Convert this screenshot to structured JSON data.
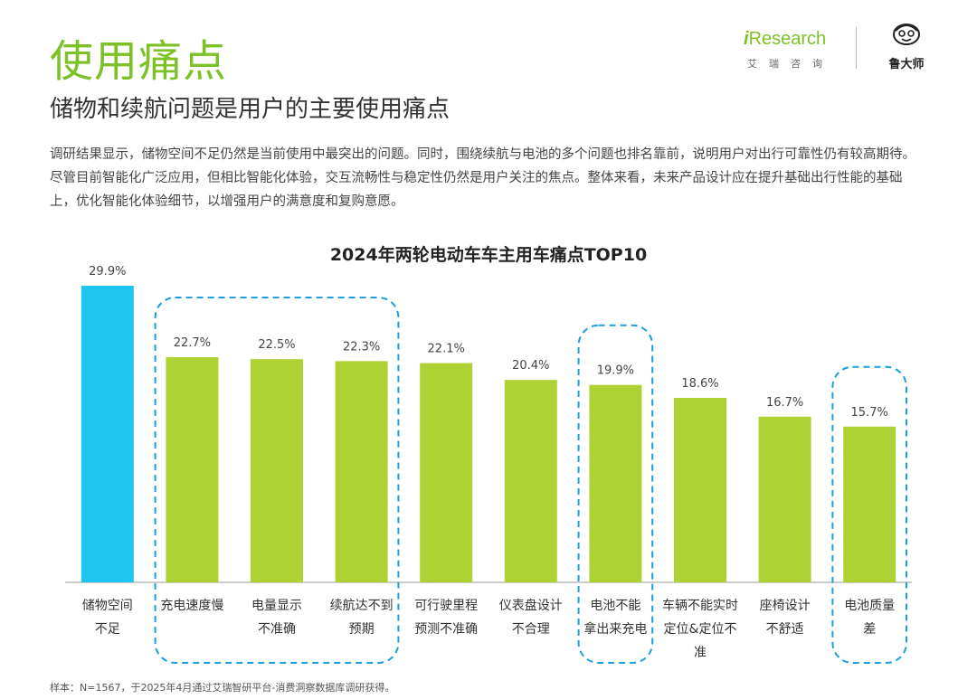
{
  "page": {
    "title": "使用痛点",
    "subtitle": "储物和续航问题是用户的主要使用痛点",
    "body": "调研结果显示，储物空间不足仍然是当前使用中最突出的问题。同时，围绕续航与电池的多个问题也排名靠前，说明用户对出行可靠性仍有较高期待。尽管目前智能化广泛应用，但相比智能化体验，交互流畅性与稳定性仍然是用户关注的焦点。整体来看，未来产品设计应在提升基础出行性能的基础上，优化智能化体验细节，以增强用户的满意度和复购意愿。",
    "source": "样本：N=1567，于2025年4月通过艾瑞智研平台-消费洞察数据库调研获得。"
  },
  "brand": {
    "iresearch_i": "i",
    "iresearch_word": "Research",
    "iresearch_cn": "艾瑞咨询",
    "ludashi": "鲁大师"
  },
  "chart_data": {
    "type": "bar",
    "title": "2024年两轮电动车车主用车痛点TOP10",
    "categories": [
      [
        "储物空间",
        "不足"
      ],
      [
        "充电速度慢"
      ],
      [
        "电量显示",
        "不准确"
      ],
      [
        "续航达不到",
        "预期"
      ],
      [
        "可行驶里程",
        "预测不准确"
      ],
      [
        "仪表盘设计",
        "不合理"
      ],
      [
        "电池不能",
        "拿出来充电"
      ],
      [
        "车辆不能实时",
        "定位&定位不",
        "准"
      ],
      [
        "座椅设计",
        "不舒适"
      ],
      [
        "电池质量",
        "差"
      ]
    ],
    "values": [
      29.9,
      22.7,
      22.5,
      22.3,
      22.1,
      20.4,
      19.9,
      18.6,
      16.7,
      15.7
    ],
    "value_labels": [
      "29.9%",
      "22.7%",
      "22.5%",
      "22.3%",
      "22.1%",
      "20.4%",
      "19.9%",
      "18.6%",
      "16.7%",
      "15.7%"
    ],
    "ylim": [
      0,
      29.9
    ],
    "highlight_color": "#1ec5ef",
    "bar_color": "#aed133",
    "highlight_index": 0,
    "highlight_groups": [
      [
        1,
        3
      ],
      [
        6,
        6
      ],
      [
        9,
        9
      ]
    ],
    "group_outline_color": "#1a9fe0",
    "grid": false
  }
}
